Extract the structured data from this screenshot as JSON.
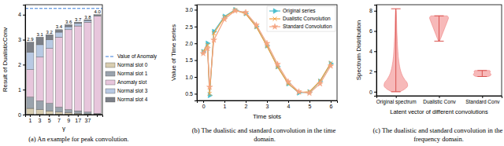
{
  "chart_data": [
    {
      "type": "bar",
      "stacked": true,
      "title": "(a) An example for peak convolution.",
      "x_label": "γ",
      "y_label": "Result of DualisticConv",
      "categories": [
        "1",
        "3",
        "5",
        "7",
        "9",
        "17",
        "37",
        null
      ],
      "series": [
        {
          "name": "Normal slot 0",
          "color": "#d8cdb0",
          "values": [
            0.25,
            0.2,
            0.15,
            0.1,
            0.08,
            0.05,
            0.03,
            0.02
          ]
        },
        {
          "name": "Normal slot 1",
          "color": "#9aa3ad",
          "values": [
            0.45,
            0.35,
            0.3,
            0.2,
            0.12,
            0.1,
            0.07,
            0.03
          ]
        },
        {
          "name": "Anomaly slot",
          "color": "#e7c6dc",
          "values": [
            1.1,
            1.75,
            2.2,
            2.8,
            3.2,
            3.4,
            3.6,
            3.9
          ]
        },
        {
          "name": "Normal slot 3",
          "color": "#b8c9e3",
          "values": [
            0.7,
            0.5,
            0.35,
            0.2,
            0.12,
            0.1,
            0.07,
            0.03
          ]
        },
        {
          "name": "Normal slot 4",
          "color": "#7c8088",
          "values": [
            0.4,
            0.3,
            0.2,
            0.1,
            0.08,
            0.05,
            0.03,
            0.02
          ]
        }
      ],
      "totals": {
        "values": [
          2.9,
          3.1,
          3.2,
          3.4,
          3.6,
          3.7,
          3.8,
          4.0
        ],
        "value_labels": [
          "2.9",
          "3.1",
          "3.2",
          "3.4",
          "3.6",
          "3.7",
          "3.8",
          "4.0"
        ]
      },
      "reference_lines": [
        {
          "name": "Value of Anomaly",
          "value": 4.25,
          "color": "#3b7dd8",
          "line_style": "dashed"
        }
      ],
      "ylim": [
        0,
        4.4
      ],
      "yticks": [
        0,
        1,
        2,
        3,
        4
      ],
      "legend": "right"
    },
    {
      "type": "line",
      "title": "(b) The dualistic and standard convolution in the time domain.",
      "x_label": "Time slots",
      "y_label": "Value of Time series",
      "x": [
        0,
        0.2,
        0.3,
        0.5,
        1,
        1.5,
        2,
        2.5,
        3,
        3.5,
        4,
        4.5,
        5,
        5.5,
        6
      ],
      "series": [
        {
          "name": "Original series",
          "color": "#4bbfcf",
          "marker": "triangle-right",
          "values": [
            1.75,
            2.0,
            0.45,
            2.35,
            2.8,
            3.0,
            2.89,
            2.5,
            1.93,
            1.31,
            0.8,
            0.53,
            0.55,
            0.87,
            1.4
          ]
        },
        {
          "name": "Dualistic Convolution",
          "color": "#f0a040",
          "marker": "x",
          "values": [
            1.75,
            1.95,
            0.5,
            2.3,
            2.78,
            2.99,
            2.88,
            2.49,
            1.92,
            1.3,
            0.8,
            0.54,
            0.56,
            0.88,
            1.41
          ]
        },
        {
          "name": "Standard Convolution",
          "color": "#f4a582",
          "marker": "star",
          "values": [
            1.7,
            1.85,
            0.7,
            2.1,
            2.72,
            2.97,
            2.92,
            2.55,
            2.0,
            1.38,
            0.86,
            0.56,
            0.52,
            0.8,
            1.33
          ]
        }
      ],
      "xlim": [
        -0.3,
        6.3
      ],
      "xticks": [
        0,
        1,
        2,
        3,
        4,
        5,
        6
      ],
      "ylim": [
        0.3,
        3.15
      ],
      "yticks": [
        0.5,
        {
          "value": 1,
          "label": "1.0"
        },
        1.5,
        {
          "value": 2,
          "label": "2.0"
        },
        2.5,
        {
          "value": 3,
          "label": "3.0"
        }
      ],
      "legend": "upper right"
    },
    {
      "type": "violin",
      "title": "(c) The dualistic and standard convolution in the frequency domain.",
      "x_label": "Latent vector of different convolutions",
      "y_label": "Spectrum Distribution",
      "categories": [
        "Original spectrum",
        "Dualistic Conv",
        "Standard Conv"
      ],
      "violins": [
        {
          "y": [
            0,
            0.3,
            0.6,
            0.9,
            1.2,
            1.6,
            2.0,
            2.5,
            3.0,
            3.5,
            4.0,
            4.5,
            5.0,
            5.5,
            6.0,
            6.5,
            7.0,
            7.5,
            8.0,
            8.2
          ],
          "density": [
            0.35,
            0.8,
            1.0,
            0.95,
            0.75,
            0.55,
            0.42,
            0.32,
            0.25,
            0.2,
            0.17,
            0.14,
            0.12,
            0.1,
            0.08,
            0.07,
            0.06,
            0.05,
            0.03,
            0.0
          ]
        },
        {
          "y": [
            5.0,
            5.3,
            5.6,
            5.9,
            6.2,
            6.5,
            6.8,
            7.1,
            7.3,
            7.5
          ],
          "density": [
            0.05,
            0.15,
            0.25,
            0.35,
            0.45,
            0.55,
            0.65,
            0.75,
            0.8,
            0.7
          ]
        },
        {
          "y": [
            1.5,
            1.6,
            1.7,
            1.8,
            1.9,
            2.0,
            2.1
          ],
          "density": [
            0.5,
            0.7,
            0.75,
            0.7,
            0.65,
            0.7,
            0.6
          ]
        }
      ],
      "color": "#f08080",
      "ylim": [
        -0.4,
        8.6
      ],
      "yticks": [
        0,
        2,
        4,
        6,
        8
      ]
    }
  ]
}
